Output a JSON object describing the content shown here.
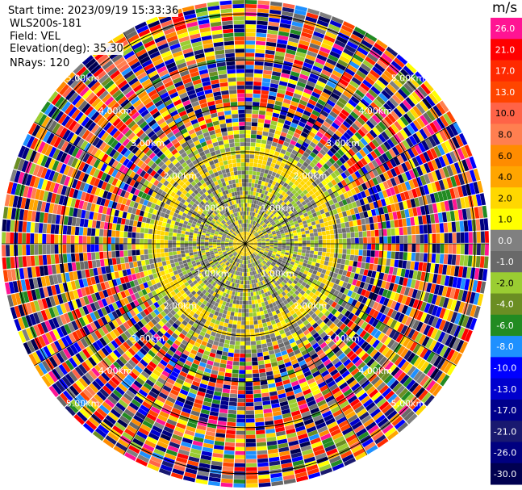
{
  "header": {
    "start_time": "Start time: 2023/09/19 15:33:36",
    "site": "WLS200s-181",
    "field": "Field: VEL",
    "elevation": "Elevation(deg): 35.30",
    "nrays": "NRays: 120"
  },
  "colorbar": {
    "unit": "m/s",
    "ticks": [
      "26.0",
      "21.0",
      "17.0",
      "13.0",
      "10.0",
      "8.0",
      "6.0",
      "4.0",
      "2.0",
      "1.0",
      "0.0",
      "-1.0",
      "-2.0",
      "-4.0",
      "-6.0",
      "-8.0",
      "-10.0",
      "-13.0",
      "-17.0",
      "-21.0",
      "-26.0",
      "-30.0"
    ],
    "colors": [
      "#ff1493",
      "#ff0000",
      "#ff2a00",
      "#ff4500",
      "#ff6347",
      "#ff7f50",
      "#ff8c00",
      "#ffa500",
      "#ffd700",
      "#ffff00",
      "#808080",
      "#696969",
      "#9acd32",
      "#6b8e23",
      "#228b22",
      "#1e90ff",
      "#0000ff",
      "#0000cd",
      "#00008b",
      "#191970",
      "#000080",
      "#000050"
    ]
  },
  "chart_data": {
    "type": "heatmap",
    "projection": "polar-ppi",
    "field": "VEL",
    "units": "m/s",
    "nrays": 120,
    "range_ring_labels": [
      "1.00km",
      "2.00km",
      "3.00km",
      "4.00km",
      "5.00km"
    ],
    "range_rings_km": [
      1,
      2,
      3,
      4,
      5
    ],
    "value_range": [
      -30,
      26
    ],
    "pattern": "near ranges ~0 to +2 m/s (gray/yellow/green), far ranges noisy mixed colours"
  }
}
